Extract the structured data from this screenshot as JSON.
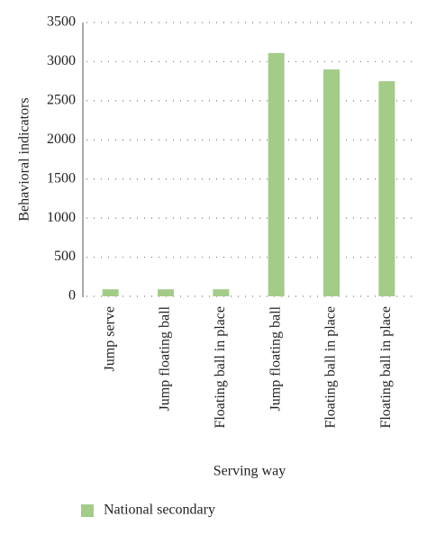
{
  "chart_data": {
    "type": "bar",
    "x_label": "Serving way",
    "y_label": "Behavioral indicators",
    "categories": [
      "Jump serve",
      "Jump floating ball",
      "Floating ball in place",
      "Jump floating ball",
      "Floating ball in place",
      "Floating ball in place"
    ],
    "series": [
      {
        "name": "National secondary",
        "color": "#a3cc88",
        "values": [
          90,
          90,
          90,
          3110,
          2900,
          2750
        ]
      }
    ],
    "ylim": [
      0,
      3500
    ],
    "yticks": [
      0,
      500,
      1000,
      1500,
      2000,
      2500,
      3000,
      3500
    ],
    "grid": true,
    "legend": "bottom-left"
  }
}
